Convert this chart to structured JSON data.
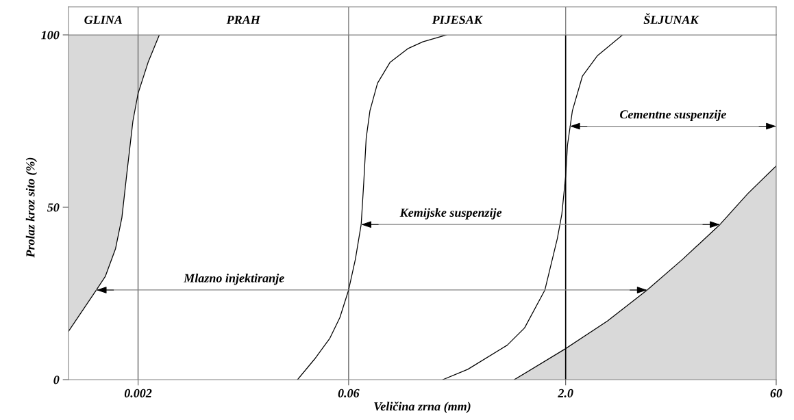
{
  "chart_data": {
    "type": "line",
    "xlabel": "Veličina zrna (mm)",
    "ylabel": "Prolaz kroz sito (%)",
    "log": "x",
    "xlim": [
      0.00065,
      60
    ],
    "xticks": [
      0.002,
      0.06,
      {
        "value": 2.0,
        "label": "2.0"
      },
      60
    ],
    "ylim": [
      0,
      100
    ],
    "yticks": [
      0,
      50,
      100
    ],
    "grid": false,
    "legend": false,
    "annotations": [
      "GLINA",
      "PRAH",
      "PIJESAK",
      "ŠLJUNAK"
    ],
    "ref_lines": [
      {
        "axis": "x",
        "value": 0.002,
        "color": "#808080"
      },
      {
        "axis": "x",
        "value": 0.06,
        "color": "#808080"
      },
      {
        "axis": "x",
        "value": 2.0,
        "color": "#000000"
      }
    ],
    "series": [
      {
        "color": "#000000",
        "x": [
          0.00065,
          0.00102,
          0.00118,
          0.00139,
          0.00154,
          0.00167,
          0.00184,
          0.002,
          0.00235,
          0.00282
        ],
        "values": [
          14,
          26,
          30,
          38,
          47,
          60,
          75,
          83,
          92,
          100
        ],
        "lower": [
          14,
          26,
          30,
          38,
          47,
          60,
          75,
          83,
          92,
          100
        ],
        "upper": [
          100,
          100,
          100,
          100,
          100,
          100,
          100,
          100,
          100,
          100
        ]
      },
      {
        "color": "#000000",
        "x": [
          0.0263,
          0.0347,
          0.0443,
          0.0521,
          0.06,
          0.067,
          0.0735,
          0.0766,
          0.0797,
          0.0847,
          0.0957,
          0.117,
          0.156,
          0.199,
          0.292
        ],
        "values": [
          0,
          6,
          12,
          18,
          26,
          35,
          45,
          57,
          70,
          78,
          86,
          92,
          96,
          98,
          100
        ]
      },
      {
        "color": "#000000",
        "x": [
          0.275,
          0.412,
          0.778,
          1.03,
          1.43,
          1.75,
          1.88,
          2.0,
          2.06,
          2.23,
          2.62,
          3.35,
          5.02
        ],
        "values": [
          0,
          3,
          10,
          15,
          26,
          41,
          48,
          59,
          68,
          78,
          88,
          94,
          100
        ]
      },
      {
        "type": "area",
        "color": "#000000",
        "x": [
          0.872,
          2.0,
          3.93,
          7.46,
          13.3,
          24.2,
          38.0,
          60
        ],
        "values": [
          0,
          9,
          17,
          26,
          35,
          45,
          54,
          62
        ]
      },
      {
        "name": "Mlazno injektiranje",
        "color": "#808080",
        "x": [
          0.00102,
          7.46
        ],
        "values": [
          26,
          26
        ]
      },
      {
        "name": "Kemijske suspenzije",
        "color": "#808080",
        "x": [
          0.0735,
          24.2
        ],
        "values": [
          45,
          45
        ]
      },
      {
        "name": "Cementne suspenzije",
        "color": "#808080",
        "x": [
          2.14,
          60
        ],
        "values": [
          73.5,
          73.5
        ]
      }
    ]
  }
}
